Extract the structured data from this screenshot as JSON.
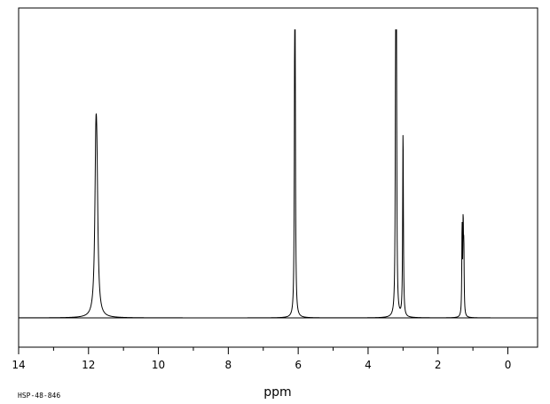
{
  "chart_data": {
    "type": "line",
    "xlabel": "ppm",
    "ylabel": "",
    "xlim": [
      14,
      -0.85
    ],
    "ylim": [
      0,
      1
    ],
    "x_reversed": true,
    "grid": false,
    "tick_labels": [
      "14",
      "12",
      "10",
      "8",
      "6",
      "4",
      "2",
      "0"
    ],
    "ticks": [
      14,
      12,
      10,
      8,
      6,
      4,
      2,
      0
    ],
    "minor_ticks_interval": 1,
    "peaks": [
      {
        "ppm": 11.79,
        "height": 0.49,
        "width": 0.035
      },
      {
        "ppm": 11.76,
        "height": 0.36,
        "width": 0.035
      },
      {
        "ppm": 6.09,
        "height": 1.0,
        "width": 0.012
      },
      {
        "ppm": 6.1,
        "height": 0.63,
        "width": 0.012
      },
      {
        "ppm": 3.21,
        "height": 0.98,
        "width": 0.012
      },
      {
        "ppm": 3.19,
        "height": 0.93,
        "width": 0.012
      },
      {
        "ppm": 3.0,
        "height": 0.66,
        "width": 0.012
      },
      {
        "ppm": 1.31,
        "height": 0.31,
        "width": 0.01
      },
      {
        "ppm": 1.28,
        "height": 0.31,
        "width": 0.01
      },
      {
        "ppm": 1.26,
        "height": 0.22,
        "width": 0.01
      }
    ]
  },
  "footer": {
    "code": "HSP-48-846"
  }
}
